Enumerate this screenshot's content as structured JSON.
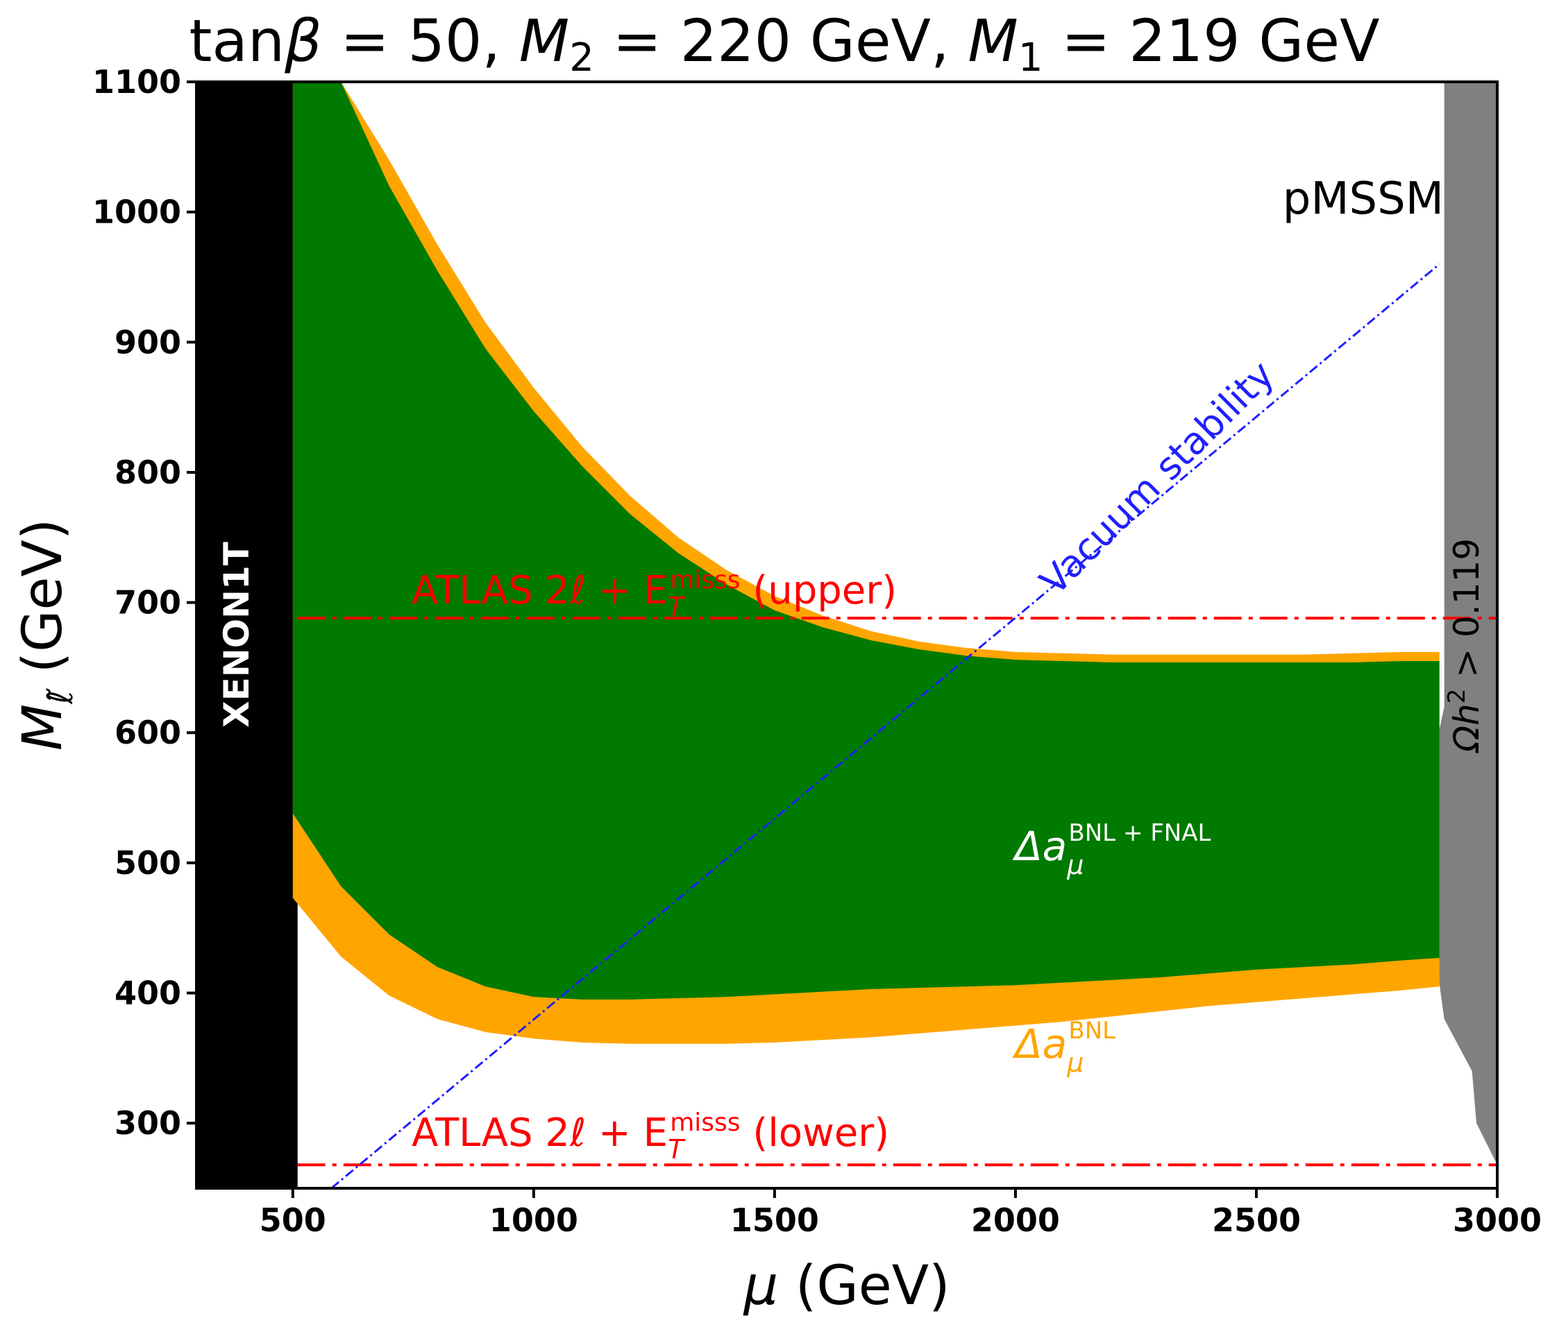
{
  "chart_data": {
    "type": "area",
    "title": {
      "prefix": "tan",
      "beta": "β",
      "eq1": " = 50, ",
      "m2": "M",
      "m2_sub": "2",
      "eq2": " = 220 GeV, ",
      "m1": "M",
      "m1_sub": "1",
      "eq3": " = 219 GeV"
    },
    "xlabel": {
      "symbol": "μ",
      "unit": " (GeV)"
    },
    "ylabel": {
      "symbol": "M",
      "sub": "ℓ̃",
      "unit": " (GeV)"
    },
    "xlim": [
      300,
      3000
    ],
    "ylim": [
      250,
      1100
    ],
    "xticks": [
      500,
      1000,
      1500,
      2000,
      2500,
      3000
    ],
    "yticks": [
      300,
      400,
      500,
      600,
      700,
      800,
      900,
      1000,
      1100
    ],
    "tag": "pMSSM",
    "regions": {
      "xenon": {
        "label": "XENON1T",
        "x_range": [
          300,
          510
        ],
        "color": "#000000"
      },
      "relic": {
        "label_main": "Ωh",
        "label_sup": "2",
        "label_rest": " > 0.119",
        "x_range": [
          2890,
          3000
        ],
        "color": "#808080"
      },
      "bnl": {
        "label": "Δa",
        "label_sub": "μ",
        "label_sup": "BNL",
        "color": "#ffa500",
        "x": [
          500,
          600,
          700,
          800,
          900,
          1000,
          1100,
          1200,
          1300,
          1400,
          1500,
          1600,
          1700,
          1800,
          1900,
          2000,
          2100,
          2200,
          2300,
          2400,
          2500,
          2600,
          2700,
          2800,
          2880
        ],
        "upper": [
          1100,
          1100,
          1040,
          975,
          915,
          865,
          820,
          782,
          750,
          725,
          705,
          690,
          678,
          670,
          665,
          662,
          661,
          660,
          660,
          660,
          660,
          660,
          661,
          662,
          662
        ],
        "lower": [
          473,
          428,
          398,
          380,
          370,
          365,
          362,
          361,
          361,
          361,
          362,
          364,
          366,
          369,
          372,
          375,
          378,
          382,
          386,
          390,
          393,
          396,
          399,
          402,
          405
        ]
      },
      "bnl_fnal": {
        "label": "Δa",
        "label_sub": "μ",
        "label_sup": "BNL + FNAL",
        "color": "#007a00",
        "x": [
          500,
          600,
          700,
          800,
          900,
          1000,
          1100,
          1200,
          1300,
          1400,
          1500,
          1600,
          1700,
          1800,
          1900,
          2000,
          2100,
          2200,
          2300,
          2400,
          2500,
          2600,
          2700,
          2800,
          2880
        ],
        "upper": [
          1100,
          1100,
          1020,
          955,
          895,
          847,
          805,
          768,
          738,
          714,
          694,
          681,
          671,
          664,
          659,
          656,
          655,
          654,
          654,
          654,
          654,
          654,
          654,
          655,
          655
        ],
        "lower": [
          538,
          482,
          445,
          420,
          405,
          397,
          395,
          395,
          396,
          397,
          399,
          401,
          403,
          404,
          405,
          406,
          408,
          410,
          412,
          415,
          418,
          420,
          422,
          425,
          427
        ]
      }
    },
    "lines": {
      "atlas_upper": {
        "y": 688,
        "label": "ATLAS 2ℓ + E",
        "label_sub": "T",
        "label_sup": "misss",
        "label_end": " (upper)",
        "color": "#ff0000"
      },
      "atlas_lower": {
        "y": 268,
        "label": "ATLAS 2ℓ + E",
        "label_sub": "T",
        "label_sup": "misss",
        "label_end": " (lower)",
        "color": "#ff0000"
      },
      "vacuum": {
        "label": "Vacuum stability",
        "x": [
          580,
          2880
        ],
        "y": [
          250,
          960
        ],
        "color": "#1f1fff"
      }
    }
  }
}
